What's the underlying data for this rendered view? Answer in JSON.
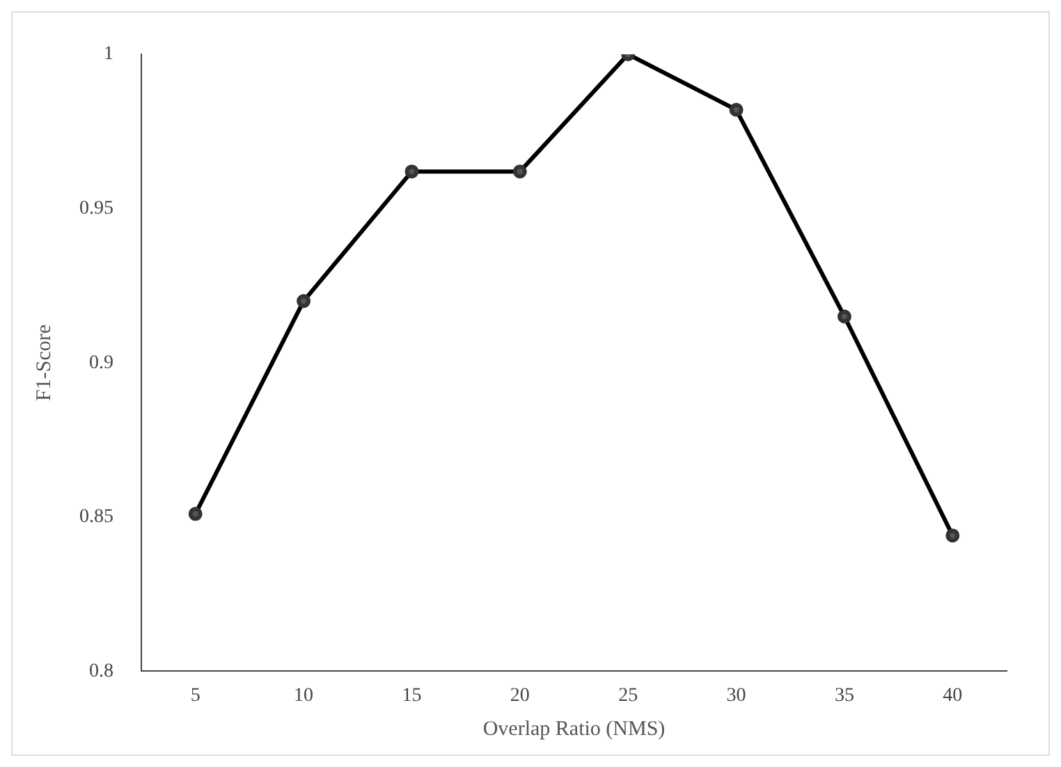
{
  "chart_data": {
    "type": "line",
    "xlabel": "Overlap Ratio (NMS)",
    "ylabel": "F1-Score",
    "categories": [
      "5",
      "10",
      "15",
      "20",
      "25",
      "30",
      "35",
      "40"
    ],
    "series": [
      {
        "color": "#000000",
        "values": [
          0.851,
          0.92,
          0.962,
          0.962,
          1.0,
          0.982,
          0.915,
          0.844
        ]
      }
    ],
    "ylim": [
      0.8,
      1.0
    ],
    "yticks": [
      0.8,
      0.85,
      0.9,
      0.95,
      1
    ],
    "grid": false,
    "legend": false,
    "marker": "circle",
    "line_style": "solid"
  }
}
